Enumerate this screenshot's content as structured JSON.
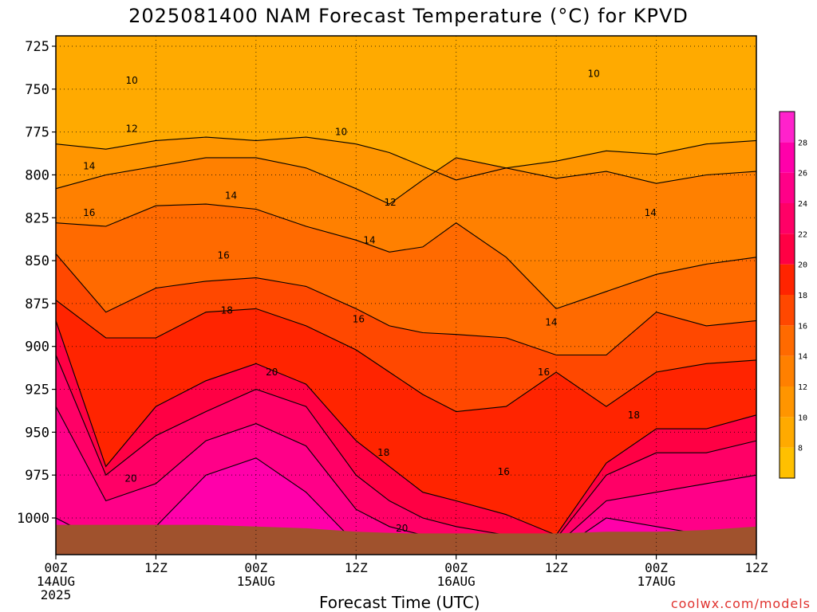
{
  "title": "2025081400 NAM Forecast Temperature (°C) for KPVD",
  "xlabel": "Forecast Time (UTC)",
  "credit": "coolwx.com/models",
  "chart_data": {
    "type": "heatmap",
    "title": "2025081400 NAM Forecast Temperature (°C) for KPVD",
    "xlabel": "Forecast Time (UTC)",
    "ylabel": "",
    "y_scale": "pressure (hPa), inverted",
    "ylim": [
      1025,
      720
    ],
    "y_ticks": [
      725,
      750,
      775,
      800,
      825,
      850,
      875,
      900,
      925,
      950,
      975,
      1000
    ],
    "x_ticks": [
      {
        "hour": 0,
        "label": "00Z",
        "sub": "14AUG",
        "sub2": "2025"
      },
      {
        "hour": 12,
        "label": "12Z",
        "sub": "",
        "sub2": ""
      },
      {
        "hour": 24,
        "label": "00Z",
        "sub": "15AUG",
        "sub2": ""
      },
      {
        "hour": 36,
        "label": "12Z",
        "sub": "",
        "sub2": ""
      },
      {
        "hour": 48,
        "label": "00Z",
        "sub": "16AUG",
        "sub2": ""
      },
      {
        "hour": 60,
        "label": "12Z",
        "sub": "",
        "sub2": ""
      },
      {
        "hour": 72,
        "label": "00Z",
        "sub": "17AUG",
        "sub2": ""
      },
      {
        "hour": 84,
        "label": "12Z",
        "sub": "",
        "sub2": ""
      }
    ],
    "xlim_hours": [
      0,
      84
    ],
    "grid": true,
    "colorbar": {
      "ticks": [
        8,
        10,
        12,
        14,
        16,
        18,
        20,
        22,
        24,
        26,
        28
      ],
      "levels": [
        {
          "min": 6,
          "color": "#ffc000"
        },
        {
          "min": 8,
          "color": "#ffaa00"
        },
        {
          "min": 10,
          "color": "#ff9500"
        },
        {
          "min": 12,
          "color": "#ff8000"
        },
        {
          "min": 14,
          "color": "#ff6a00"
        },
        {
          "min": 16,
          "color": "#ff4800"
        },
        {
          "min": 18,
          "color": "#ff2400"
        },
        {
          "min": 20,
          "color": "#ff0044"
        },
        {
          "min": 22,
          "color": "#ff0066"
        },
        {
          "min": 24,
          "color": "#ff0088"
        },
        {
          "min": 26,
          "color": "#ff00aa"
        },
        {
          "min": 28,
          "color": "#ff22cc"
        }
      ]
    },
    "contour_bands": [
      {
        "level": 10,
        "color": "#ff9500",
        "top": [
          [
            0,
            782
          ],
          [
            6,
            785
          ],
          [
            12,
            780
          ],
          [
            18,
            778
          ],
          [
            24,
            780
          ],
          [
            30,
            778
          ],
          [
            36,
            782
          ],
          [
            40,
            787
          ],
          [
            44,
            795
          ],
          [
            48,
            803
          ],
          [
            54,
            796
          ],
          [
            60,
            792
          ],
          [
            66,
            786
          ],
          [
            72,
            788
          ],
          [
            78,
            782
          ],
          [
            84,
            780
          ]
        ]
      },
      {
        "level": 12,
        "color": "#ff8000",
        "top": [
          [
            0,
            808
          ],
          [
            6,
            800
          ],
          [
            12,
            795
          ],
          [
            18,
            790
          ],
          [
            24,
            790
          ],
          [
            30,
            796
          ],
          [
            36,
            808
          ],
          [
            40,
            817
          ],
          [
            44,
            803
          ],
          [
            48,
            790
          ],
          [
            54,
            796
          ],
          [
            60,
            802
          ],
          [
            66,
            798
          ],
          [
            72,
            805
          ],
          [
            78,
            800
          ],
          [
            84,
            798
          ]
        ]
      },
      {
        "level": 14,
        "color": "#ff6a00",
        "top": [
          [
            0,
            828
          ],
          [
            6,
            830
          ],
          [
            12,
            818
          ],
          [
            18,
            817
          ],
          [
            24,
            820
          ],
          [
            30,
            830
          ],
          [
            36,
            838
          ],
          [
            40,
            845
          ],
          [
            44,
            842
          ],
          [
            48,
            828
          ],
          [
            54,
            848
          ],
          [
            60,
            878
          ],
          [
            66,
            868
          ],
          [
            72,
            858
          ],
          [
            78,
            852
          ],
          [
            84,
            848
          ]
        ]
      },
      {
        "level": 16,
        "color": "#ff4800",
        "top": [
          [
            0,
            846
          ],
          [
            6,
            880
          ],
          [
            12,
            866
          ],
          [
            18,
            862
          ],
          [
            24,
            860
          ],
          [
            30,
            865
          ],
          [
            36,
            878
          ],
          [
            40,
            888
          ],
          [
            44,
            892
          ],
          [
            48,
            893
          ],
          [
            54,
            895
          ],
          [
            60,
            905
          ],
          [
            66,
            905
          ],
          [
            72,
            880
          ],
          [
            78,
            888
          ],
          [
            84,
            885
          ]
        ]
      },
      {
        "level": 18,
        "color": "#ff2400",
        "top": [
          [
            0,
            873
          ],
          [
            6,
            895
          ],
          [
            12,
            895
          ],
          [
            18,
            880
          ],
          [
            24,
            878
          ],
          [
            30,
            888
          ],
          [
            36,
            902
          ],
          [
            40,
            915
          ],
          [
            44,
            928
          ],
          [
            48,
            938
          ],
          [
            54,
            935
          ],
          [
            60,
            915
          ],
          [
            66,
            935
          ],
          [
            72,
            915
          ],
          [
            78,
            910
          ],
          [
            84,
            908
          ]
        ]
      },
      {
        "level": 20,
        "color": "#ff0044",
        "top": [
          [
            0,
            885
          ],
          [
            6,
            970
          ],
          [
            12,
            935
          ],
          [
            18,
            920
          ],
          [
            24,
            910
          ],
          [
            30,
            922
          ],
          [
            36,
            955
          ],
          [
            40,
            970
          ],
          [
            44,
            985
          ],
          [
            48,
            990
          ],
          [
            54,
            998
          ],
          [
            60,
            1010
          ],
          [
            66,
            968
          ],
          [
            72,
            948
          ],
          [
            78,
            948
          ],
          [
            84,
            940
          ]
        ]
      },
      {
        "level": 22,
        "color": "#ff0066",
        "top": [
          [
            0,
            905
          ],
          [
            6,
            975
          ],
          [
            12,
            952
          ],
          [
            18,
            938
          ],
          [
            24,
            925
          ],
          [
            30,
            935
          ],
          [
            36,
            975
          ],
          [
            40,
            990
          ],
          [
            44,
            1000
          ],
          [
            48,
            1005
          ],
          [
            54,
            1010
          ],
          [
            60,
            1012
          ],
          [
            66,
            975
          ],
          [
            72,
            962
          ],
          [
            78,
            962
          ],
          [
            84,
            955
          ]
        ]
      },
      {
        "level": 24,
        "color": "#ff0088",
        "top": [
          [
            0,
            935
          ],
          [
            6,
            990
          ],
          [
            12,
            980
          ],
          [
            18,
            955
          ],
          [
            24,
            945
          ],
          [
            30,
            958
          ],
          [
            36,
            995
          ],
          [
            40,
            1005
          ],
          [
            44,
            1010
          ],
          [
            48,
            1012
          ],
          [
            54,
            1014
          ],
          [
            60,
            1016
          ],
          [
            66,
            990
          ],
          [
            72,
            985
          ],
          [
            78,
            980
          ],
          [
            84,
            975
          ]
        ]
      },
      {
        "level": 26,
        "color": "#ff00aa",
        "top": [
          [
            0,
            1000
          ],
          [
            6,
            1015
          ],
          [
            12,
            1005
          ],
          [
            18,
            975
          ],
          [
            24,
            965
          ],
          [
            30,
            985
          ],
          [
            36,
            1015
          ],
          [
            40,
            1020
          ],
          [
            44,
            1020
          ],
          [
            48,
            1020
          ],
          [
            54,
            1020
          ],
          [
            60,
            1020
          ],
          [
            66,
            1000
          ],
          [
            72,
            1005
          ],
          [
            78,
            1010
          ],
          [
            84,
            1010
          ]
        ]
      }
    ],
    "contour_labels": [
      {
        "text": "10",
        "x": 9.1,
        "p": 745
      },
      {
        "text": "10",
        "x": 34.2,
        "p": 775
      },
      {
        "text": "10",
        "x": 64.5,
        "p": 741
      },
      {
        "text": "12",
        "x": 9.1,
        "p": 773
      },
      {
        "text": "12",
        "x": 40.1,
        "p": 816
      },
      {
        "text": "14",
        "x": 4,
        "p": 795
      },
      {
        "text": "14",
        "x": 21,
        "p": 812
      },
      {
        "text": "14",
        "x": 37.6,
        "p": 838
      },
      {
        "text": "14",
        "x": 71.3,
        "p": 822
      },
      {
        "text": "14",
        "x": 59.4,
        "p": 886
      },
      {
        "text": "16",
        "x": 4,
        "p": 822
      },
      {
        "text": "16",
        "x": 20.1,
        "p": 847
      },
      {
        "text": "16",
        "x": 36.3,
        "p": 884
      },
      {
        "text": "16",
        "x": 58.5,
        "p": 915
      },
      {
        "text": "16",
        "x": 53.7,
        "p": 973
      },
      {
        "text": "18",
        "x": 20.5,
        "p": 879
      },
      {
        "text": "18",
        "x": 39.3,
        "p": 962
      },
      {
        "text": "18",
        "x": 69.3,
        "p": 940
      },
      {
        "text": "20",
        "x": 25.9,
        "p": 915
      },
      {
        "text": "20",
        "x": 9,
        "p": 977
      },
      {
        "text": "20",
        "x": 41.5,
        "p": 1006
      }
    ],
    "surface": [
      [
        0,
        1004
      ],
      [
        6,
        1004
      ],
      [
        12,
        1004
      ],
      [
        18,
        1004
      ],
      [
        24,
        1005
      ],
      [
        30,
        1006
      ],
      [
        36,
        1008
      ],
      [
        42,
        1009
      ],
      [
        48,
        1009
      ],
      [
        54,
        1009
      ],
      [
        60,
        1009
      ],
      [
        66,
        1008
      ],
      [
        72,
        1008
      ],
      [
        78,
        1007
      ],
      [
        84,
        1005
      ]
    ]
  }
}
